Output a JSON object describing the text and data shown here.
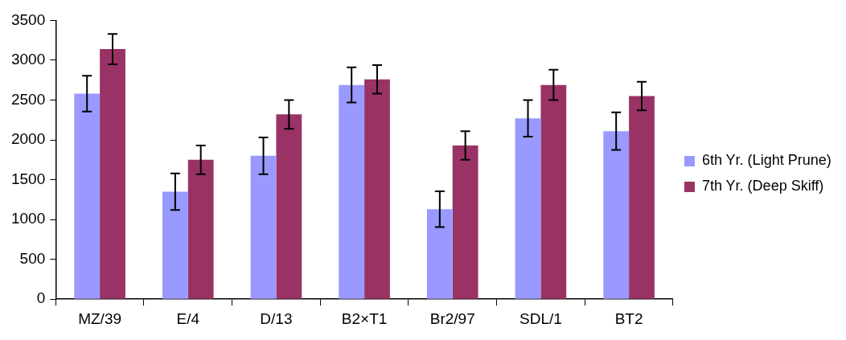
{
  "chart_data": {
    "type": "bar",
    "categories": [
      "MZ/39",
      "E/4",
      "D/13",
      "B2×T1",
      "Br2/97",
      "SDL/1",
      "BT2"
    ],
    "series": [
      {
        "name": "6th Yr. (Light Prune)",
        "color": "#9999ff",
        "values": [
          2580,
          1350,
          1800,
          2690,
          1130,
          2270,
          2110
        ],
        "errors": [
          225,
          230,
          230,
          220,
          225,
          230,
          235
        ]
      },
      {
        "name": "7th Yr. (Deep Skiff)",
        "color": "#993366",
        "values": [
          3140,
          1750,
          2320,
          2760,
          1930,
          2690,
          2550
        ],
        "errors": [
          190,
          180,
          180,
          180,
          180,
          190,
          180
        ]
      }
    ],
    "ylim": [
      0,
      3500
    ],
    "yticks": [
      0,
      500,
      1000,
      1500,
      2000,
      2500,
      3000,
      3500
    ],
    "grid": false,
    "legend": "right"
  }
}
